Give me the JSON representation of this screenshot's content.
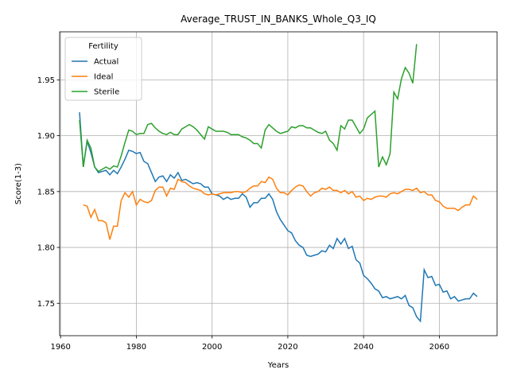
{
  "chart_data": {
    "type": "line",
    "title": "Average_TRUST_IN_BANKS_Whole_Q3_IQ",
    "xlabel": "Years",
    "ylabel": "Score(1-3)",
    "legend_title": "Fertility",
    "legend": "upper left",
    "grid": true,
    "xlim": [
      1959.75,
      2075.25
    ],
    "xticks": [
      1960,
      1980,
      2000,
      2020,
      2040,
      2060
    ],
    "ylim": [
      1.721,
      1.993
    ],
    "yticks": [
      1.75,
      {
        "value": 1.8,
        "label": "1.80"
      },
      1.85,
      {
        "value": 1.9,
        "label": "1.90"
      },
      1.95
    ],
    "x": [
      1965,
      1966,
      1967,
      1968,
      1969,
      1970,
      1971,
      1972,
      1973,
      1974,
      1975,
      1976,
      1977,
      1978,
      1979,
      1980,
      1981,
      1982,
      1983,
      1984,
      1985,
      1986,
      1987,
      1988,
      1989,
      1990,
      1991,
      1992,
      1993,
      1994,
      1995,
      1996,
      1997,
      1998,
      1999,
      2000,
      2001,
      2002,
      2003,
      2004,
      2005,
      2006,
      2007,
      2008,
      2009,
      2010,
      2011,
      2012,
      2013,
      2014,
      2015,
      2016,
      2017,
      2018,
      2019,
      2020,
      2021,
      2022,
      2023,
      2024,
      2025,
      2026,
      2027,
      2028,
      2029,
      2030,
      2031,
      2032,
      2033,
      2034,
      2035,
      2036,
      2037,
      2038,
      2039,
      2040,
      2041,
      2042,
      2043,
      2044,
      2045,
      2046,
      2047,
      2048,
      2049,
      2050,
      2051,
      2052,
      2053,
      2054,
      2055,
      2056,
      2057,
      2058,
      2059,
      2060,
      2061,
      2062,
      2063,
      2064,
      2065,
      2066,
      2067,
      2068,
      2069,
      2070
    ],
    "series": [
      {
        "name": "Actual",
        "color": "#1f77b4",
        "values": [
          1.921,
          1.872,
          1.895,
          1.885,
          1.872,
          1.867,
          1.868,
          1.869,
          1.865,
          1.869,
          1.866,
          1.872,
          1.879,
          1.887,
          1.886,
          1.884,
          1.885,
          1.877,
          1.875,
          1.867,
          1.859,
          1.863,
          1.864,
          1.859,
          1.865,
          1.862,
          1.867,
          1.86,
          1.861,
          1.859,
          1.857,
          1.858,
          1.857,
          1.854,
          1.854,
          1.848,
          1.847,
          1.846,
          1.843,
          1.845,
          1.843,
          1.844,
          1.844,
          1.848,
          1.845,
          1.836,
          1.84,
          1.84,
          1.844,
          1.844,
          1.848,
          1.843,
          1.832,
          1.825,
          1.82,
          1.815,
          1.813,
          1.806,
          1.802,
          1.8,
          1.793,
          1.792,
          1.793,
          1.794,
          1.797,
          1.796,
          1.802,
          1.799,
          1.808,
          1.803,
          1.808,
          1.799,
          1.801,
          1.789,
          1.786,
          1.775,
          1.772,
          1.768,
          1.763,
          1.761,
          1.755,
          1.756,
          1.754,
          1.755,
          1.756,
          1.754,
          1.757,
          1.748,
          1.746,
          1.738,
          1.734,
          1.78,
          1.773,
          1.774,
          1.766,
          1.767,
          1.76,
          1.761,
          1.754,
          1.756,
          1.752,
          1.753,
          1.754,
          1.754,
          1.759,
          1.756
        ]
      },
      {
        "name": "Ideal",
        "color": "#ff7f0e",
        "values": [
          null,
          1.838,
          1.837,
          1.827,
          1.834,
          1.824,
          1.824,
          1.822,
          1.807,
          1.819,
          1.819,
          1.842,
          1.849,
          1.845,
          1.85,
          1.838,
          1.843,
          1.841,
          1.84,
          1.842,
          1.851,
          1.854,
          1.854,
          1.846,
          1.853,
          1.852,
          1.861,
          1.859,
          1.858,
          1.855,
          1.853,
          1.852,
          1.851,
          1.848,
          1.847,
          1.848,
          1.847,
          1.848,
          1.849,
          1.849,
          1.849,
          1.85,
          1.85,
          1.849,
          1.85,
          1.853,
          1.855,
          1.855,
          1.859,
          1.858,
          1.863,
          1.861,
          1.853,
          1.849,
          1.849,
          1.847,
          1.851,
          1.854,
          1.856,
          1.855,
          1.85,
          1.846,
          1.849,
          1.85,
          1.853,
          1.852,
          1.854,
          1.851,
          1.851,
          1.849,
          1.851,
          1.848,
          1.85,
          1.845,
          1.846,
          1.842,
          1.844,
          1.843,
          1.845,
          1.846,
          1.846,
          1.845,
          1.848,
          1.849,
          1.848,
          1.85,
          1.852,
          1.852,
          1.851,
          1.853,
          1.849,
          1.85,
          1.847,
          1.847,
          1.842,
          1.841,
          1.837,
          1.835,
          1.835,
          1.835,
          1.833,
          1.836,
          1.838,
          1.838,
          1.846,
          1.843
        ]
      },
      {
        "name": "Sterile",
        "color": "#2ca02c",
        "values": [
          1.914,
          1.872,
          1.896,
          1.889,
          1.872,
          1.868,
          1.87,
          1.872,
          1.87,
          1.873,
          1.872,
          1.882,
          1.894,
          1.905,
          1.904,
          1.901,
          1.902,
          1.902,
          1.91,
          1.911,
          1.907,
          1.904,
          1.902,
          1.901,
          1.903,
          1.901,
          1.901,
          1.906,
          1.908,
          1.91,
          1.908,
          1.905,
          1.901,
          1.897,
          1.908,
          1.906,
          1.904,
          1.904,
          1.904,
          1.903,
          1.901,
          1.901,
          1.901,
          1.899,
          1.898,
          1.896,
          1.893,
          1.893,
          1.889,
          1.905,
          1.91,
          1.907,
          1.904,
          1.902,
          1.903,
          1.904,
          1.908,
          1.907,
          1.909,
          1.909,
          1.907,
          1.907,
          1.905,
          1.903,
          1.902,
          1.904,
          1.896,
          1.893,
          1.887,
          1.909,
          1.906,
          1.914,
          1.914,
          1.908,
          1.902,
          1.906,
          1.916,
          1.919,
          1.922,
          1.872,
          1.881,
          1.874,
          1.884,
          1.939,
          1.933,
          1.951,
          1.961,
          1.956,
          1.947,
          1.982,
          null,
          null,
          null,
          null,
          null,
          null,
          null,
          null,
          null,
          null,
          null,
          null,
          null,
          null,
          null,
          null
        ]
      }
    ]
  }
}
